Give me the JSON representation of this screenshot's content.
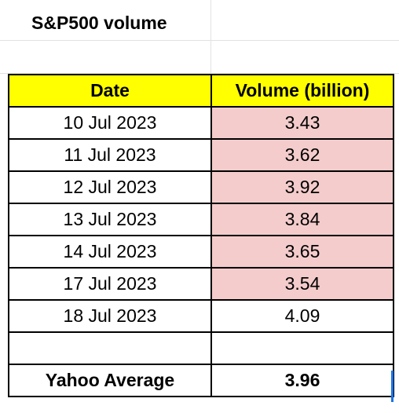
{
  "title": "S&P500 volume",
  "table": {
    "headers": [
      "Date",
      "Volume (billion)"
    ],
    "rows": [
      {
        "date": "10 Jul 2023",
        "volume": "3.43",
        "highlighted": true
      },
      {
        "date": "11 Jul 2023",
        "volume": "3.62",
        "highlighted": true
      },
      {
        "date": "12 Jul 2023",
        "volume": "3.92",
        "highlighted": true
      },
      {
        "date": "13 Jul 2023",
        "volume": "3.84",
        "highlighted": true
      },
      {
        "date": "14 Jul 2023",
        "volume": "3.65",
        "highlighted": true
      },
      {
        "date": "17 Jul 2023",
        "volume": "3.54",
        "highlighted": true
      },
      {
        "date": "18 Jul 2023",
        "volume": "4.09",
        "highlighted": false
      }
    ],
    "empty_row": [
      "",
      ""
    ],
    "summary": {
      "label": "Yahoo Average",
      "value": "3.96"
    }
  },
  "colors": {
    "header_fill": "#ffff00",
    "highlight_fill": "#f4cccc",
    "selection": "#1a73e8"
  }
}
